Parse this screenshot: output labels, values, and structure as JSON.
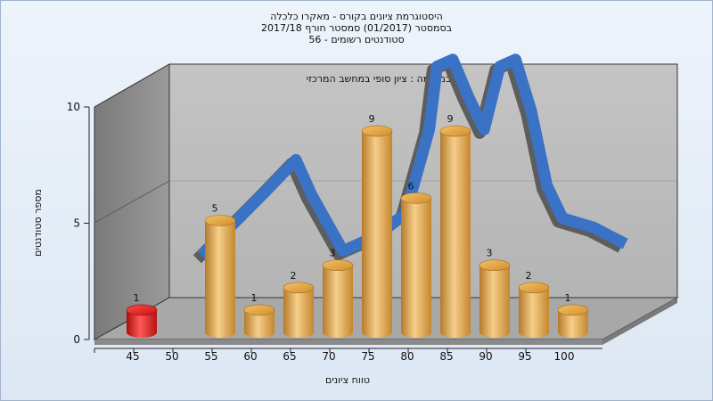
{
  "chart_data": {
    "type": "bar",
    "title": "היסטוגרמת ציונים בקורס - מאקרו כלכלה",
    "subtitle_lines": [
      "בסמסטר  (01/2017)  סמסטר חורף 2017/18",
      "סטודנטים רשומים - 56"
    ],
    "annotation": "במשימה : ציון סופי במחשב המרכזי",
    "xlabel": "טווח ציונים",
    "ylabel": "מספר סטודנטים",
    "x_ticks": [
      "45",
      "50",
      "55",
      "60",
      "65",
      "70",
      "75",
      "80",
      "85",
      "90",
      "95",
      "100"
    ],
    "y_ticks": [
      0,
      5,
      10
    ],
    "ylim": [
      0,
      10
    ],
    "bars": [
      {
        "x": 45,
        "value": 1,
        "color": "#d81818"
      },
      {
        "x": 55,
        "value": 5,
        "color": "#e0a049"
      },
      {
        "x": 60,
        "value": 1,
        "color": "#e0a049"
      },
      {
        "x": 65,
        "value": 2,
        "color": "#e0a049"
      },
      {
        "x": 70,
        "value": 3,
        "color": "#e0a049"
      },
      {
        "x": 75,
        "value": 9,
        "color": "#e0a049"
      },
      {
        "x": 80,
        "value": 6,
        "color": "#e0a049"
      },
      {
        "x": 85,
        "value": 9,
        "color": "#e0a049"
      },
      {
        "x": 90,
        "value": 3,
        "color": "#e0a049"
      },
      {
        "x": 95,
        "value": 2,
        "color": "#e0a049"
      },
      {
        "x": 100,
        "value": 1,
        "color": "#e0a049"
      }
    ],
    "curve": {
      "color": "#3a72c6",
      "points": [
        [
          48,
          1.8
        ],
        [
          56,
          4.5
        ],
        [
          60,
          5.9
        ],
        [
          62,
          4.4
        ],
        [
          66,
          2.0
        ],
        [
          70,
          2.6
        ],
        [
          74,
          3.6
        ],
        [
          77,
          7.2
        ],
        [
          78,
          9.9
        ],
        [
          80,
          10.2
        ],
        [
          82,
          8.6
        ],
        [
          84,
          7.2
        ],
        [
          86,
          9.9
        ],
        [
          88,
          10.2
        ],
        [
          90,
          8.0
        ],
        [
          92,
          4.8
        ],
        [
          94,
          3.4
        ],
        [
          98,
          3.0
        ],
        [
          102,
          2.3
        ]
      ]
    },
    "grid": false,
    "legend": "none"
  }
}
